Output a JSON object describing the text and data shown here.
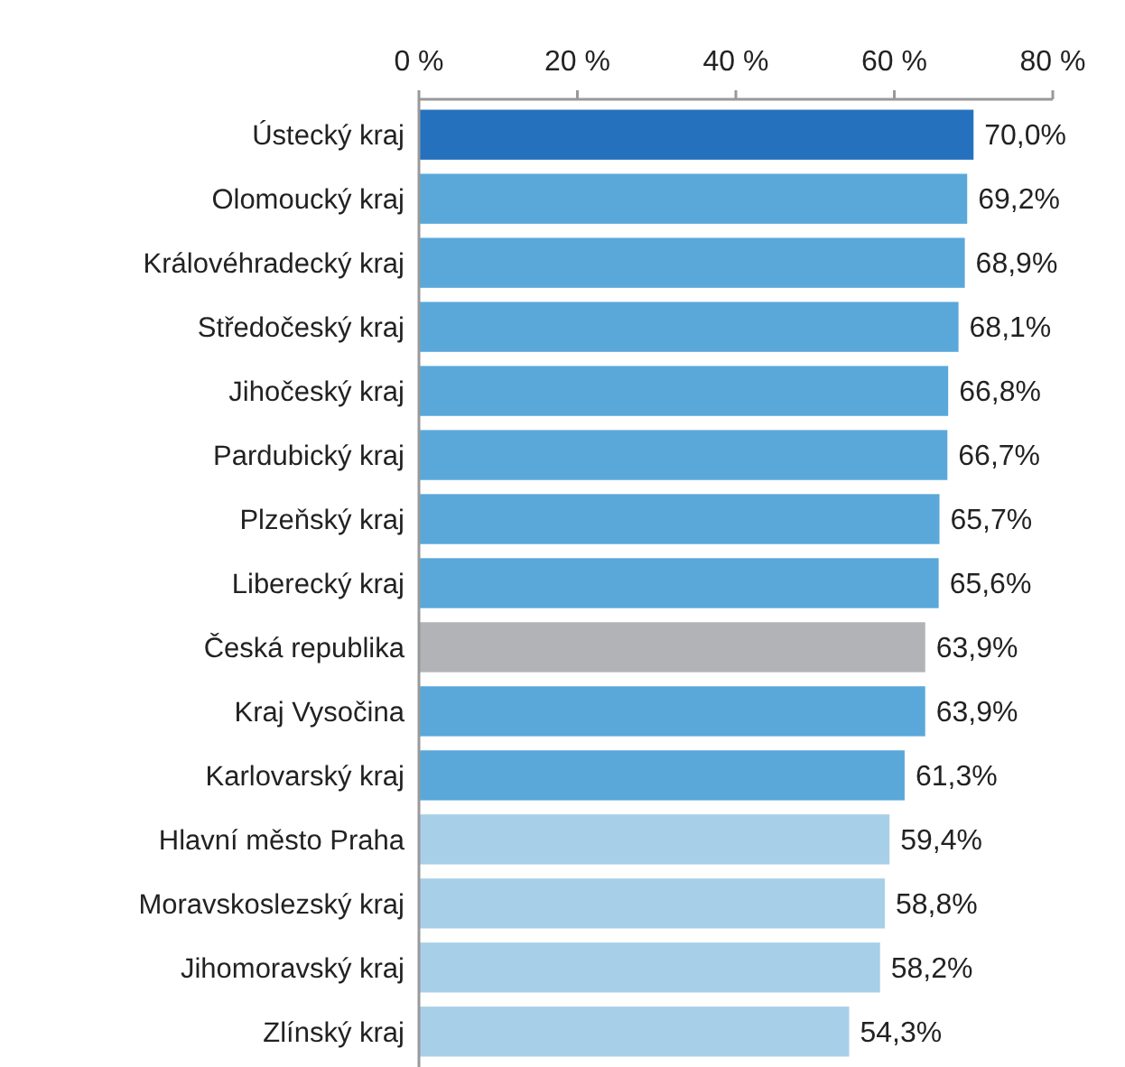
{
  "chart_data": {
    "type": "bar",
    "orientation": "horizontal",
    "categories": [
      "Ústecký kraj",
      "Olomoucký kraj",
      "Královéhradecký kraj",
      "Středočeský kraj",
      "Jihočeský kraj",
      "Pardubický kraj",
      "Plzeňský kraj",
      "Liberecký kraj",
      "Česká republika",
      "Kraj Vysočina",
      "Karlovarský kraj",
      "Hlavní město Praha",
      "Moravskoslezský kraj",
      "Jihomoravský kraj",
      "Zlínský kraj"
    ],
    "values": [
      70.0,
      69.2,
      68.9,
      68.1,
      66.8,
      66.7,
      65.7,
      65.6,
      63.9,
      63.9,
      61.3,
      59.4,
      58.8,
      58.2,
      54.3
    ],
    "colors": [
      "#2671bd",
      "#5aa8da",
      "#5aa8da",
      "#5aa8da",
      "#5aa8da",
      "#5aa8da",
      "#5aa8da",
      "#5aa8da",
      "#b1b3b6",
      "#5aa8da",
      "#5aa8da",
      "#a8cfe8",
      "#a8cfe8",
      "#a8cfe8",
      "#a8cfe8"
    ],
    "value_labels": [
      "70,0%",
      "69,2%",
      "68,9%",
      "68,1%",
      "66,8%",
      "66,7%",
      "65,7%",
      "65,6%",
      "63,9%",
      "63,9%",
      "61,3%",
      "59,4%",
      "58,8%",
      "58,2%",
      "54,3%"
    ],
    "xlim": [
      0,
      80
    ],
    "xticks": [
      {
        "value": 0,
        "label": "0 %"
      },
      {
        "value": 20,
        "label": "20 %"
      },
      {
        "value": 40,
        "label": "40 %"
      },
      {
        "value": 60,
        "label": "60 %"
      },
      {
        "value": 80,
        "label": "80 %"
      }
    ],
    "grid": false
  }
}
